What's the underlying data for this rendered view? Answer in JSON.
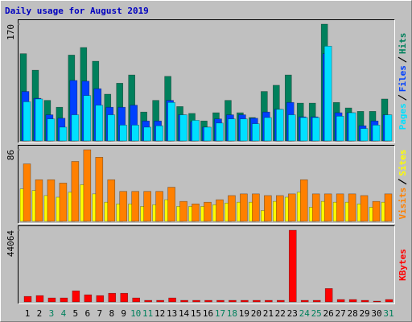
{
  "chart_data": [
    {
      "type": "bar",
      "title": "Daily usage for August 2019",
      "ylim": [
        0,
        170
      ],
      "yticks": [
        170
      ],
      "series": [
        {
          "name": "Hits",
          "color": "#00805c",
          "values": [
            127,
            103,
            59,
            49,
            125,
            136,
            116,
            68,
            84,
            96,
            42,
            59,
            94,
            50,
            40,
            29,
            41,
            59,
            41,
            34,
            72,
            81,
            96,
            55,
            55,
            170,
            56,
            48,
            43,
            43,
            61
          ]
        },
        {
          "name": "Files",
          "color": "#0040ff",
          "values": [
            72,
            62,
            38,
            33,
            88,
            87,
            76,
            49,
            49,
            52,
            29,
            29,
            59,
            38,
            28,
            20,
            32,
            38,
            38,
            33,
            42,
            46,
            56,
            35,
            35,
            127,
            41,
            41,
            22,
            29,
            38
          ]
        },
        {
          "name": "Pages",
          "color": "#00e0ff",
          "values": [
            57,
            61,
            32,
            20,
            38,
            66,
            52,
            38,
            23,
            23,
            20,
            22,
            56,
            38,
            30,
            20,
            26,
            32,
            32,
            25,
            34,
            46,
            38,
            34,
            34,
            138,
            36,
            41,
            18,
            23,
            38
          ]
        }
      ]
    },
    {
      "type": "bar",
      "ylim": [
        0,
        86
      ],
      "yticks": [
        86
      ],
      "series": [
        {
          "name": "Sites",
          "color": "#ffff00",
          "values": [
            39,
            37,
            31,
            29,
            35,
            44,
            33,
            23,
            21,
            21,
            18,
            20,
            26,
            18,
            18,
            18,
            20,
            22,
            23,
            23,
            13,
            24,
            29,
            35,
            17,
            24,
            23,
            23,
            21,
            17,
            23
          ]
        },
        {
          "name": "Visits",
          "color": "#ff8000",
          "values": [
            69,
            50,
            50,
            46,
            72,
            86,
            77,
            50,
            36,
            36,
            36,
            36,
            41,
            24,
            21,
            23,
            26,
            31,
            33,
            33,
            31,
            31,
            33,
            50,
            33,
            33,
            33,
            33,
            31,
            24,
            33
          ]
        }
      ]
    },
    {
      "type": "bar",
      "ylim": [
        0,
        44064
      ],
      "yticks": [
        44064
      ],
      "categories": [
        "1",
        "2",
        "3",
        "4",
        "5",
        "6",
        "7",
        "8",
        "9",
        "10",
        "11",
        "12",
        "13",
        "14",
        "15",
        "16",
        "17",
        "18",
        "19",
        "20",
        "21",
        "22",
        "23",
        "24",
        "25",
        "26",
        "27",
        "28",
        "29",
        "30",
        "31"
      ],
      "category_colors": [
        "#000",
        "#000",
        "#00805c",
        "#00805c",
        "#000",
        "#000",
        "#000",
        "#000",
        "#000",
        "#00805c",
        "#00805c",
        "#000",
        "#000",
        "#000",
        "#000",
        "#000",
        "#00805c",
        "#00805c",
        "#000",
        "#000",
        "#000",
        "#000",
        "#000",
        "#00805c",
        "#00805c",
        "#000",
        "#000",
        "#000",
        "#000",
        "#000",
        "#00805c"
      ],
      "series": [
        {
          "name": "KBytes",
          "color": "#ff0000",
          "values": [
            3390,
            3874,
            2421,
            2421,
            6779,
            4358,
            3874,
            5327,
            5327,
            2421,
            968,
            968,
            2421,
            968,
            968,
            968,
            968,
            968,
            968,
            968,
            968,
            968,
            44064,
            968,
            968,
            8232,
            1453,
            1453,
            968,
            484,
            1453
          ]
        }
      ]
    }
  ]
}
